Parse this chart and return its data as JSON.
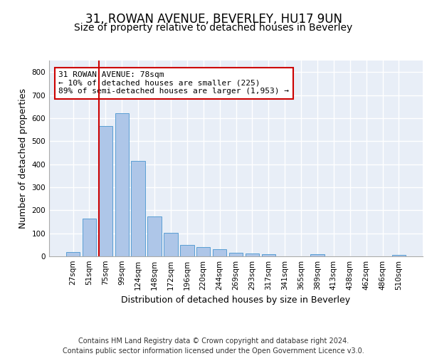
{
  "title": "31, ROWAN AVENUE, BEVERLEY, HU17 9UN",
  "subtitle": "Size of property relative to detached houses in Beverley",
  "xlabel": "Distribution of detached houses by size in Beverley",
  "ylabel": "Number of detached properties",
  "categories": [
    "27sqm",
    "51sqm",
    "75sqm",
    "99sqm",
    "124sqm",
    "148sqm",
    "172sqm",
    "196sqm",
    "220sqm",
    "244sqm",
    "269sqm",
    "293sqm",
    "317sqm",
    "341sqm",
    "365sqm",
    "389sqm",
    "413sqm",
    "438sqm",
    "462sqm",
    "486sqm",
    "510sqm"
  ],
  "values": [
    18,
    164,
    565,
    620,
    413,
    172,
    103,
    51,
    39,
    30,
    14,
    13,
    10,
    0,
    0,
    8,
    0,
    0,
    0,
    0,
    7
  ],
  "bar_color": "#aec6e8",
  "bar_edge_color": "#5a9fd4",
  "annotation_text": "31 ROWAN AVENUE: 78sqm\n← 10% of detached houses are smaller (225)\n89% of semi-detached houses are larger (1,953) →",
  "annotation_box_color": "#cc0000",
  "ylim": [
    0,
    850
  ],
  "yticks": [
    0,
    100,
    200,
    300,
    400,
    500,
    600,
    700,
    800
  ],
  "footer_line1": "Contains HM Land Registry data © Crown copyright and database right 2024.",
  "footer_line2": "Contains public sector information licensed under the Open Government Licence v3.0.",
  "background_color": "#e8eef7",
  "grid_color": "#ffffff",
  "title_fontsize": 12,
  "subtitle_fontsize": 10,
  "axis_label_fontsize": 9,
  "tick_fontsize": 7.5,
  "footer_fontsize": 7
}
